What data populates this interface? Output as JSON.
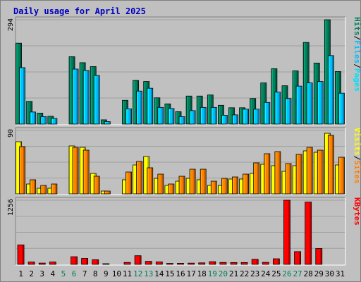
{
  "title": "Daily usage for April 2025",
  "colors": {
    "title": "#0000c0",
    "background": "#c0c0c0",
    "hits": "#00805c",
    "files": "#00c0ff",
    "pages": "#00e0ff",
    "visits": "#ffff00",
    "sites": "#ff8000",
    "kbytes": "#ff0000",
    "weekend_label": "#00805c",
    "weekday_label": "#000000"
  },
  "chart_data": [
    {
      "type": "bar",
      "panel": "hits-files-pages",
      "ylim": [
        0,
        294
      ],
      "ymax_label": "294",
      "legend": [
        {
          "key": "pages",
          "label": "Pages"
        },
        {
          "key": "sep1",
          "label": "/"
        },
        {
          "key": "files",
          "label": "Files"
        },
        {
          "key": "sep2",
          "label": "/"
        },
        {
          "key": "hits",
          "label": "Hits"
        }
      ],
      "series": [
        {
          "name": "Hits",
          "values": [
            228,
            64,
            31,
            22,
            0,
            190,
            173,
            162,
            12,
            0,
            67,
            123,
            120,
            74,
            57,
            35,
            79,
            79,
            82,
            53,
            46,
            46,
            72,
            116,
            156,
            108,
            150,
            230,
            172,
            294,
            148
          ]
        },
        {
          "name": "Files",
          "values": [
            159,
            34,
            21,
            16,
            0,
            155,
            151,
            137,
            7,
            0,
            43,
            93,
            101,
            47,
            44,
            21,
            38,
            47,
            47,
            25,
            26,
            42,
            42,
            61,
            90,
            72,
            107,
            116,
            120,
            193,
            87
          ]
        }
      ]
    },
    {
      "type": "bar",
      "panel": "visits-sites",
      "ylim": [
        0,
        90
      ],
      "ymax_label": "90",
      "legend": [
        {
          "key": "sites",
          "label": "Sites"
        },
        {
          "key": "sep",
          "label": "/"
        },
        {
          "key": "visits",
          "label": "Visits"
        }
      ],
      "series": [
        {
          "name": "Visits",
          "values": [
            74,
            14,
            8,
            8,
            0,
            68,
            66,
            29,
            4,
            0,
            20,
            41,
            53,
            22,
            12,
            18,
            22,
            20,
            12,
            12,
            21,
            21,
            29,
            42,
            40,
            32,
            40,
            61,
            59,
            86,
            41
          ]
        },
        {
          "name": "Sites",
          "values": [
            67,
            20,
            12,
            14,
            0,
            66,
            62,
            25,
            4,
            0,
            31,
            46,
            37,
            28,
            14,
            25,
            35,
            35,
            18,
            22,
            24,
            28,
            44,
            57,
            60,
            43,
            56,
            66,
            62,
            83,
            52
          ]
        }
      ]
    },
    {
      "type": "bar",
      "panel": "kbytes",
      "ylim": [
        0,
        1256
      ],
      "ymax_label": "1256",
      "legend": [
        {
          "key": "kbytes",
          "label": "KBytes"
        }
      ],
      "series": [
        {
          "name": "KBytes",
          "values": [
            382,
            46,
            26,
            46,
            0,
            150,
            118,
            92,
            10,
            0,
            38,
            170,
            60,
            48,
            20,
            22,
            25,
            30,
            53,
            38,
            36,
            36,
            100,
            40,
            110,
            1256,
            250,
            1220,
            310,
            0,
            0
          ]
        }
      ]
    }
  ],
  "x_axis": {
    "days": [
      "1",
      "2",
      "3",
      "4",
      "5",
      "6",
      "7",
      "8",
      "9",
      "10",
      "11",
      "12",
      "13",
      "14",
      "15",
      "16",
      "17",
      "18",
      "19",
      "20",
      "21",
      "22",
      "23",
      "24",
      "25",
      "26",
      "27",
      "28",
      "29",
      "30",
      "31"
    ],
    "weekend_days": [
      "5",
      "6",
      "12",
      "13",
      "19",
      "20",
      "26",
      "27"
    ]
  }
}
